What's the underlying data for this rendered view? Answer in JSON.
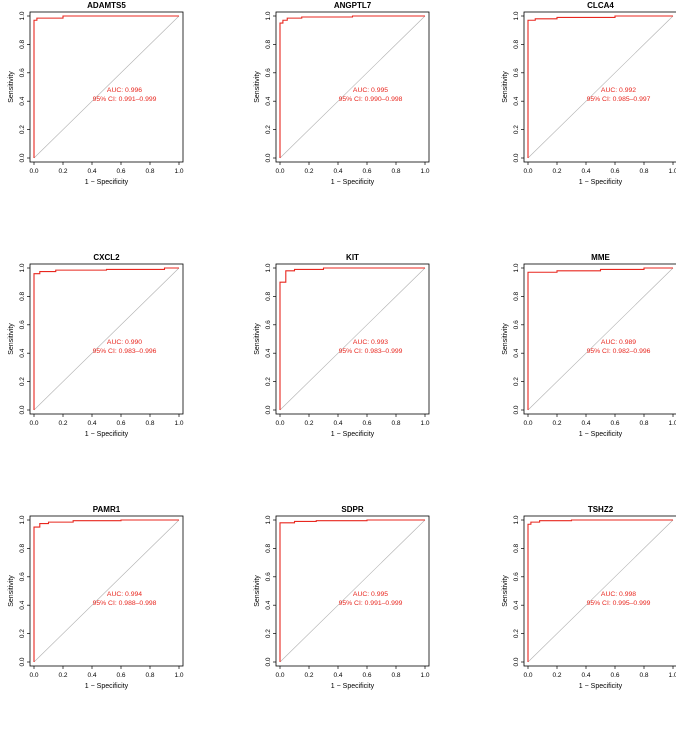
{
  "chart_data": [
    {
      "type": "line",
      "title": "ADAMTS5",
      "xlabel": "1 − Specificity",
      "ylabel": "Sensitivity",
      "auc_text": "AUC: 0.996",
      "ci_text": "95% CI: 0.991–0.999",
      "xlim": [
        0,
        1
      ],
      "ylim": [
        0,
        1
      ],
      "x_ticks": [
        "0.0",
        "0.2",
        "0.4",
        "0.6",
        "0.8",
        "1.0"
      ],
      "y_ticks": [
        "0.0",
        "0.2",
        "0.4",
        "0.6",
        "0.8",
        "1.0"
      ],
      "roc_color": "#e8271f",
      "diag_color": "#b0b0b0",
      "x": [
        0,
        0,
        0.02,
        0.02,
        0.2,
        0.2,
        1
      ],
      "y": [
        0,
        0.97,
        0.97,
        0.985,
        0.985,
        1,
        1
      ]
    },
    {
      "type": "line",
      "title": "ANGPTL7",
      "xlabel": "1 − Specificity",
      "ylabel": "Sensitivity",
      "auc_text": "AUC: 0.995",
      "ci_text": "95% CI: 0.990–0.998",
      "xlim": [
        0,
        1
      ],
      "ylim": [
        0,
        1
      ],
      "x_ticks": [
        "0.0",
        "0.2",
        "0.4",
        "0.6",
        "0.8",
        "1.0"
      ],
      "y_ticks": [
        "0.0",
        "0.2",
        "0.4",
        "0.6",
        "0.8",
        "1.0"
      ],
      "roc_color": "#e8271f",
      "diag_color": "#b0b0b0",
      "x": [
        0,
        0,
        0.02,
        0.02,
        0.05,
        0.05,
        0.15,
        0.15,
        0.5,
        0.5,
        1
      ],
      "y": [
        0,
        0.95,
        0.95,
        0.97,
        0.97,
        0.985,
        0.985,
        0.993,
        0.993,
        1,
        1
      ]
    },
    {
      "type": "line",
      "title": "CLCA4",
      "xlabel": "1 − Specificity",
      "ylabel": "Sensitivity",
      "auc_text": "AUC: 0.992",
      "ci_text": "95% CI: 0.985–0.997",
      "xlim": [
        0,
        1
      ],
      "ylim": [
        0,
        1
      ],
      "x_ticks": [
        "0.0",
        "0.2",
        "0.4",
        "0.6",
        "0.8",
        "1.0"
      ],
      "y_ticks": [
        "0.0",
        "0.2",
        "0.4",
        "0.6",
        "0.8",
        "1.0"
      ],
      "roc_color": "#e8271f",
      "diag_color": "#b0b0b0",
      "x": [
        0,
        0,
        0.05,
        0.05,
        0.2,
        0.2,
        0.6,
        0.6,
        1
      ],
      "y": [
        0,
        0.97,
        0.97,
        0.98,
        0.98,
        0.99,
        0.99,
        1,
        1
      ]
    },
    {
      "type": "line",
      "title": "CXCL2",
      "xlabel": "1 − Specificity",
      "ylabel": "Sensitivity",
      "auc_text": "AUC: 0.990",
      "ci_text": "95% CI: 0.983–0.996",
      "xlim": [
        0,
        1
      ],
      "ylim": [
        0,
        1
      ],
      "x_ticks": [
        "0.0",
        "0.2",
        "0.4",
        "0.6",
        "0.8",
        "1.0"
      ],
      "y_ticks": [
        "0.0",
        "0.2",
        "0.4",
        "0.6",
        "0.8",
        "1.0"
      ],
      "roc_color": "#e8271f",
      "diag_color": "#b0b0b0",
      "x": [
        0,
        0,
        0.04,
        0.04,
        0.15,
        0.15,
        0.5,
        0.5,
        0.9,
        0.9,
        1
      ],
      "y": [
        0,
        0.96,
        0.96,
        0.975,
        0.975,
        0.985,
        0.985,
        0.99,
        0.99,
        1,
        1
      ]
    },
    {
      "type": "line",
      "title": "KIT",
      "xlabel": "1 − Specificity",
      "ylabel": "Sensitivity",
      "auc_text": "AUC: 0.993",
      "ci_text": "95% CI: 0.983–0.999",
      "xlim": [
        0,
        1
      ],
      "ylim": [
        0,
        1
      ],
      "x_ticks": [
        "0.0",
        "0.2",
        "0.4",
        "0.6",
        "0.8",
        "1.0"
      ],
      "y_ticks": [
        "0.0",
        "0.2",
        "0.4",
        "0.6",
        "0.8",
        "1.0"
      ],
      "roc_color": "#e8271f",
      "diag_color": "#b0b0b0",
      "x": [
        0,
        0,
        0.04,
        0.04,
        0.1,
        0.1,
        0.3,
        0.3,
        1
      ],
      "y": [
        0,
        0.9,
        0.9,
        0.98,
        0.98,
        0.99,
        0.99,
        1,
        1
      ]
    },
    {
      "type": "line",
      "title": "MME",
      "xlabel": "1 − Specificity",
      "ylabel": "Sensitivity",
      "auc_text": "AUC: 0.989",
      "ci_text": "95% CI: 0.982–0.996",
      "xlim": [
        0,
        1
      ],
      "ylim": [
        0,
        1
      ],
      "x_ticks": [
        "0.0",
        "0.2",
        "0.4",
        "0.6",
        "0.8",
        "1.0"
      ],
      "y_ticks": [
        "0.0",
        "0.2",
        "0.4",
        "0.6",
        "0.8",
        "1.0"
      ],
      "roc_color": "#e8271f",
      "diag_color": "#b0b0b0",
      "x": [
        0,
        0,
        0.2,
        0.2,
        0.5,
        0.5,
        0.8,
        0.8,
        1
      ],
      "y": [
        0,
        0.97,
        0.97,
        0.98,
        0.98,
        0.99,
        0.99,
        1,
        1
      ]
    },
    {
      "type": "line",
      "title": "PAMR1",
      "xlabel": "1 − Specificity",
      "ylabel": "Sensitivity",
      "auc_text": "AUC: 0.994",
      "ci_text": "95% CI: 0.988–0.998",
      "xlim": [
        0,
        1
      ],
      "ylim": [
        0,
        1
      ],
      "x_ticks": [
        "0.0",
        "0.2",
        "0.4",
        "0.6",
        "0.8",
        "1.0"
      ],
      "y_ticks": [
        "0.0",
        "0.2",
        "0.4",
        "0.6",
        "0.8",
        "1.0"
      ],
      "roc_color": "#e8271f",
      "diag_color": "#b0b0b0",
      "x": [
        0,
        0,
        0.04,
        0.04,
        0.1,
        0.1,
        0.27,
        0.27,
        0.6,
        0.6,
        1
      ],
      "y": [
        0,
        0.95,
        0.95,
        0.975,
        0.975,
        0.985,
        0.985,
        0.995,
        0.995,
        1,
        1
      ]
    },
    {
      "type": "line",
      "title": "SDPR",
      "xlabel": "1 − Specificity",
      "ylabel": "Sensitivity",
      "auc_text": "AUC: 0.995",
      "ci_text": "95% CI: 0.991–0.999",
      "xlim": [
        0,
        1
      ],
      "ylim": [
        0,
        1
      ],
      "x_ticks": [
        "0.0",
        "0.2",
        "0.4",
        "0.6",
        "0.8",
        "1.0"
      ],
      "y_ticks": [
        "0.0",
        "0.2",
        "0.4",
        "0.6",
        "0.8",
        "1.0"
      ],
      "roc_color": "#e8271f",
      "diag_color": "#b0b0b0",
      "x": [
        0,
        0,
        0.1,
        0.1,
        0.25,
        0.25,
        0.6,
        0.6,
        1
      ],
      "y": [
        0,
        0.98,
        0.98,
        0.99,
        0.99,
        0.995,
        0.995,
        1,
        1
      ]
    },
    {
      "type": "line",
      "title": "TSHZ2",
      "xlabel": "1 − Specificity",
      "ylabel": "Sensitivity",
      "auc_text": "AUC: 0.998",
      "ci_text": "95% CI: 0.995–0.999",
      "xlim": [
        0,
        1
      ],
      "ylim": [
        0,
        1
      ],
      "x_ticks": [
        "0.0",
        "0.2",
        "0.4",
        "0.6",
        "0.8",
        "1.0"
      ],
      "y_ticks": [
        "0.0",
        "0.2",
        "0.4",
        "0.6",
        "0.8",
        "1.0"
      ],
      "roc_color": "#e8271f",
      "diag_color": "#b0b0b0",
      "x": [
        0,
        0,
        0.02,
        0.02,
        0.08,
        0.08,
        0.3,
        0.3,
        1
      ],
      "y": [
        0,
        0.97,
        0.97,
        0.985,
        0.985,
        0.995,
        0.995,
        1,
        1
      ]
    }
  ]
}
